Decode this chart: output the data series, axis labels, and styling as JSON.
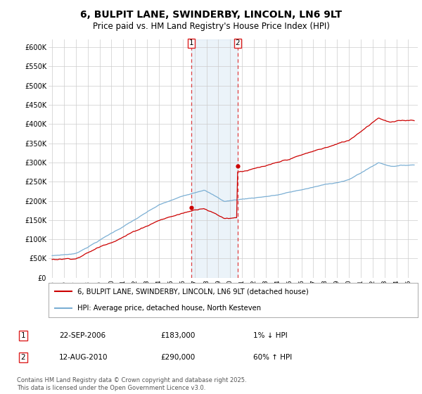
{
  "title": "6, BULPIT LANE, SWINDERBY, LINCOLN, LN6 9LT",
  "subtitle": "Price paid vs. HM Land Registry's House Price Index (HPI)",
  "title_fontsize": 10,
  "subtitle_fontsize": 8.5,
  "ylabel_ticks": [
    "£0",
    "£50K",
    "£100K",
    "£150K",
    "£200K",
    "£250K",
    "£300K",
    "£350K",
    "£400K",
    "£450K",
    "£500K",
    "£550K",
    "£600K"
  ],
  "ytick_values": [
    0,
    50000,
    100000,
    150000,
    200000,
    250000,
    300000,
    350000,
    400000,
    450000,
    500000,
    550000,
    600000
  ],
  "ylim": [
    0,
    620000
  ],
  "xlim_start": 1994.7,
  "xlim_end": 2025.8,
  "xtick_years": [
    1995,
    1996,
    1997,
    1998,
    1999,
    2000,
    2001,
    2002,
    2003,
    2004,
    2005,
    2006,
    2007,
    2008,
    2009,
    2010,
    2011,
    2012,
    2013,
    2014,
    2015,
    2016,
    2017,
    2018,
    2019,
    2020,
    2021,
    2022,
    2023,
    2024,
    2025
  ],
  "hpi_color": "#7bafd4",
  "price_color": "#cc0000",
  "vline_color": "#dd2222",
  "vline_alpha": 0.85,
  "shade_color": "#c8dff0",
  "shade_alpha": 0.35,
  "vline1_x": 2006.73,
  "vline2_x": 2010.62,
  "marker1_x": 2006.73,
  "marker1_y": 183000,
  "marker2_x": 2010.62,
  "marker2_y": 290000,
  "legend_line1": "6, BULPIT LANE, SWINDERBY, LINCOLN, LN6 9LT (detached house)",
  "legend_line2": "HPI: Average price, detached house, North Kesteven",
  "annotation1_date": "22-SEP-2006",
  "annotation1_price": "£183,000",
  "annotation1_hpi": "1% ↓ HPI",
  "annotation2_date": "12-AUG-2010",
  "annotation2_price": "£290,000",
  "annotation2_hpi": "60% ↑ HPI",
  "footer": "Contains HM Land Registry data © Crown copyright and database right 2025.\nThis data is licensed under the Open Government Licence v3.0.",
  "bg_color": "#ffffff",
  "grid_color": "#cccccc"
}
